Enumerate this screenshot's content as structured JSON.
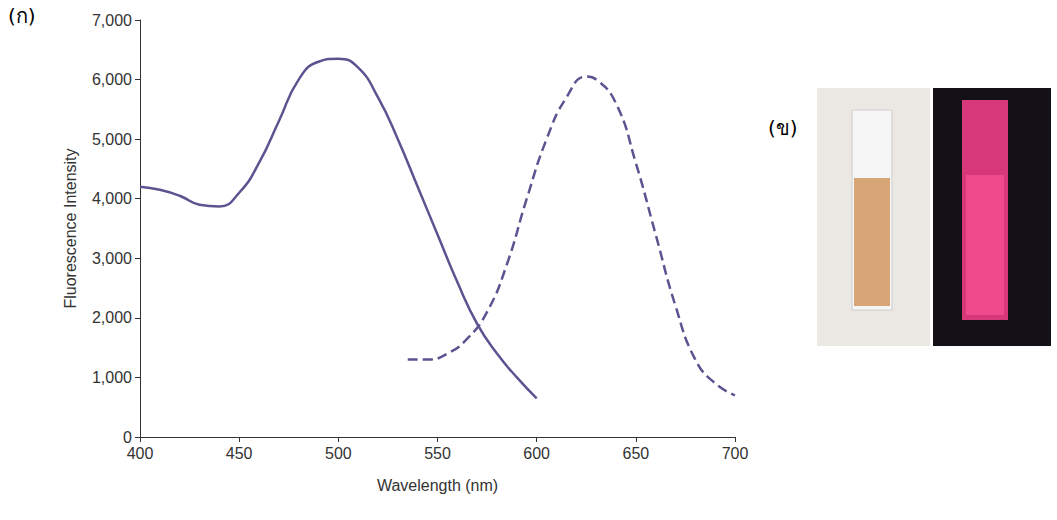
{
  "chart_data": {
    "type": "line",
    "annotations": [
      "(ก)",
      "(ข)"
    ],
    "x_label": "Wavelength (nm)",
    "y_label": "Fluorescence Intensity",
    "xlim": [
      400,
      700
    ],
    "xticks": [
      400,
      450,
      500,
      550,
      600,
      650,
      700
    ],
    "ylim": [
      0,
      7000
    ],
    "yticks": [
      0,
      1000,
      2000,
      3000,
      4000,
      5000,
      6000,
      7000
    ],
    "grid": false,
    "series": [
      {
        "color": "#5e5390",
        "line_style": "solid",
        "marker": "none",
        "x": [
          400,
          410,
          420,
          430,
          440,
          450,
          460,
          470,
          480,
          490,
          500,
          510,
          520,
          530,
          540,
          550,
          560,
          570,
          580,
          590,
          600
        ],
        "values": [
          4200,
          4150,
          4050,
          3900,
          3870,
          4100,
          4600,
          5300,
          6000,
          6300,
          6350,
          6200,
          5700,
          5000,
          4200,
          3400,
          2600,
          1900,
          1400,
          1000,
          650
        ]
      },
      {
        "color": "#5e5390",
        "line_style": "dashed",
        "marker": "none",
        "x": [
          535,
          545,
          555,
          565,
          575,
          585,
          595,
          605,
          615,
          625,
          630,
          640,
          650,
          660,
          670,
          680,
          690,
          700
        ],
        "values": [
          1300,
          1300,
          1400,
          1650,
          2100,
          2900,
          4000,
          5000,
          5700,
          6050,
          6000,
          5600,
          4600,
          3400,
          2200,
          1300,
          900,
          700
        ]
      }
    ]
  }
}
